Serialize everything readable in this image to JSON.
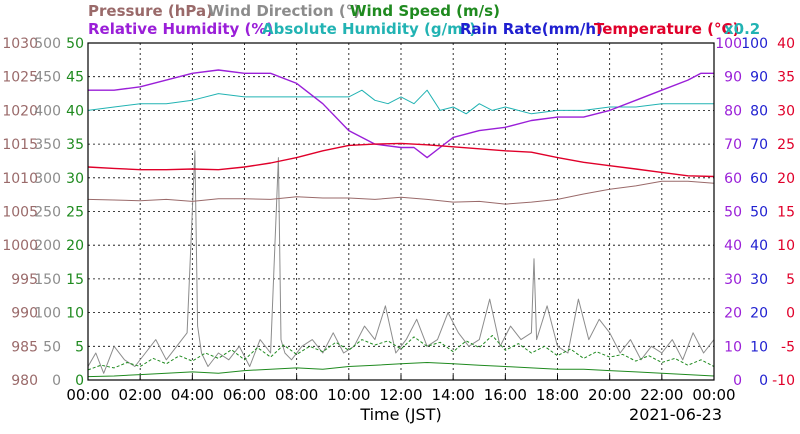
{
  "chart_data": {
    "type": "line",
    "date": "2021-06-23",
    "xlabel": "Time (JST)",
    "grid": true,
    "x_ticks": [
      "00:00",
      "02:00",
      "04:00",
      "06:00",
      "08:00",
      "10:00",
      "12:00",
      "14:00",
      "16:00",
      "18:00",
      "20:00",
      "22:00",
      "00:00"
    ],
    "legend": {
      "row1": [
        {
          "text": "Pressure (hPa)",
          "color": "#9a6a6a"
        },
        {
          "text": "Wind Direction (°)",
          "color": "#8c8c8c"
        },
        {
          "text": "Wind Speed (m/s)",
          "color": "#1f8a1f"
        }
      ],
      "row2": [
        {
          "text": "Relative Humidity (%)",
          "color": "#9a1fd8"
        },
        {
          "text": "Absolute Humidity (g/m³)",
          "color": "#22b3b3"
        },
        {
          "text": "Rain Rate(mm/h)",
          "color": "#1f1fd0"
        },
        {
          "text": "Temperature (°C)",
          "color": "#e0002a"
        },
        {
          "text": "x0.2",
          "color": "#22b3b3"
        }
      ]
    },
    "axes": {
      "pressure": {
        "label": "Pressure (hPa)",
        "ticks": [
          "980",
          "985",
          "990",
          "995",
          "1000",
          "1005",
          "1010",
          "1015",
          "1020",
          "1025",
          "1030"
        ],
        "range": [
          980,
          1030
        ],
        "color": "#9a6a6a"
      },
      "wind_direction": {
        "label": "Wind Direction (°)",
        "ticks": [
          "0",
          "50",
          "100",
          "150",
          "200",
          "250",
          "300",
          "350",
          "400",
          "450",
          "500"
        ],
        "range": [
          0,
          500
        ],
        "color": "#8c8c8c"
      },
      "wind_speed": {
        "label": "Wind Speed (m/s)",
        "ticks": [
          "0",
          "5",
          "10",
          "15",
          "20",
          "25",
          "30",
          "35",
          "40",
          "45",
          "50"
        ],
        "range": [
          0,
          50
        ],
        "color": "#1f8a1f"
      },
      "humidity": {
        "label": "Relative Humidity (%)",
        "ticks": [
          "0",
          "10",
          "20",
          "30",
          "40",
          "50",
          "60",
          "70",
          "80",
          "90",
          "100"
        ],
        "range": [
          0,
          100
        ],
        "color": "#9a1fd8"
      },
      "rain_rate": {
        "label": "Rain Rate(mm/h)",
        "ticks": [
          "0",
          "10",
          "20",
          "30",
          "40",
          "50",
          "60",
          "70",
          "80",
          "90",
          "100"
        ],
        "range": [
          0,
          100
        ],
        "color": "#1f1fd0"
      },
      "temperature": {
        "label": "Temperature (°C)",
        "ticks": [
          "-10",
          "-5",
          "0",
          "5",
          "10",
          "15",
          "20",
          "25",
          "30",
          "35",
          "40"
        ],
        "range": [
          -10,
          40
        ],
        "color": "#e0002a"
      }
    },
    "series": [
      {
        "name": "Pressure (hPa)",
        "axis": "pressure",
        "color": "#9a6a6a",
        "x": [
          0,
          1,
          2,
          3,
          4,
          5,
          6,
          7,
          8,
          9,
          10,
          11,
          12,
          13,
          14,
          15,
          16,
          17,
          18,
          19,
          20,
          21,
          22,
          23,
          24
        ],
        "values": [
          1006.8,
          1006.7,
          1006.6,
          1006.8,
          1006.5,
          1006.9,
          1006.9,
          1006.8,
          1007.2,
          1007.0,
          1007.0,
          1006.8,
          1007.1,
          1006.8,
          1006.4,
          1006.5,
          1006.1,
          1006.4,
          1006.8,
          1007.6,
          1008.3,
          1008.8,
          1009.5,
          1009.5,
          1009.2
        ]
      },
      {
        "name": "Absolute Humidity (g/m³)",
        "axis": "humidity",
        "color": "#22b3b3",
        "x": [
          0,
          1,
          2,
          3,
          4,
          5,
          6,
          7,
          8,
          9,
          10,
          10.5,
          11,
          11.5,
          12,
          12.5,
          13,
          13.5,
          14,
          14.5,
          15,
          15.5,
          16,
          17,
          18,
          19,
          20,
          21,
          22,
          23,
          24
        ],
        "values": [
          80,
          81,
          82,
          82,
          83,
          85,
          84,
          84,
          84,
          84,
          84,
          86,
          83,
          82,
          84,
          82,
          86,
          80,
          81,
          79,
          82,
          80,
          81,
          79,
          80,
          80,
          81,
          81,
          82,
          82,
          82
        ]
      },
      {
        "name": "Relative Humidity (%)",
        "axis": "humidity",
        "color": "#9a1fd8",
        "x": [
          0,
          1,
          2,
          3,
          4,
          5,
          6,
          7,
          8,
          9,
          10,
          11,
          12,
          12.5,
          13,
          13.5,
          14,
          15,
          16,
          17,
          18,
          19,
          20,
          21,
          22,
          23,
          23.5,
          24
        ],
        "values": [
          86,
          86,
          87,
          89,
          91,
          92,
          91,
          91,
          88,
          82,
          74,
          70,
          69,
          69,
          66,
          69,
          72,
          74,
          75,
          77,
          78,
          78,
          80,
          83,
          86,
          89,
          91,
          91
        ]
      },
      {
        "name": "Temperature (°C)",
        "axis": "temperature",
        "color": "#e0002a",
        "x": [
          0,
          1,
          2,
          3,
          4,
          5,
          6,
          7,
          8,
          9,
          10,
          11,
          12,
          13,
          14,
          15,
          16,
          17,
          18,
          19,
          20,
          21,
          22,
          23,
          24
        ],
        "values": [
          21.6,
          21.4,
          21.2,
          21.2,
          21.3,
          21.2,
          21.6,
          22.2,
          23.0,
          24.0,
          24.8,
          25.0,
          25.1,
          24.9,
          24.6,
          24.3,
          24.0,
          23.8,
          23.0,
          22.3,
          21.8,
          21.3,
          20.8,
          20.3,
          20.2
        ]
      },
      {
        "name": "Wind Direction (°)",
        "axis": "wind_direction",
        "color": "#8c8c8c",
        "x": [
          0,
          0.3,
          0.6,
          1,
          1.4,
          1.8,
          2.2,
          2.6,
          3,
          3.4,
          3.8,
          4.1,
          4.2,
          4.35,
          4.6,
          5,
          5.4,
          5.8,
          6.2,
          6.6,
          7,
          7.3,
          7.4,
          7.55,
          7.8,
          8.2,
          8.6,
          9,
          9.4,
          9.8,
          10.2,
          10.6,
          11,
          11.4,
          11.8,
          12.2,
          12.6,
          13,
          13.4,
          13.8,
          14.2,
          14.6,
          15,
          15.4,
          15.8,
          16.2,
          16.6,
          17,
          17.1,
          17.2,
          17.6,
          18,
          18.4,
          18.8,
          19.2,
          19.6,
          20,
          20.4,
          20.8,
          21.2,
          21.6,
          22,
          22.4,
          22.8,
          23.2,
          23.6,
          24
        ],
        "values": [
          20,
          40,
          10,
          50,
          30,
          20,
          40,
          60,
          30,
          50,
          70,
          340,
          80,
          40,
          20,
          40,
          30,
          50,
          20,
          60,
          40,
          330,
          60,
          40,
          30,
          50,
          60,
          40,
          70,
          40,
          50,
          80,
          60,
          110,
          40,
          60,
          90,
          50,
          60,
          100,
          70,
          50,
          60,
          120,
          50,
          80,
          60,
          70,
          180,
          60,
          110,
          50,
          40,
          120,
          60,
          90,
          70,
          40,
          60,
          30,
          50,
          40,
          60,
          30,
          70,
          40,
          60
        ]
      },
      {
        "name": "Wind Speed (m/s)",
        "axis": "wind_speed",
        "color": "#1f8a1f",
        "style": "dashed",
        "x": [
          0,
          0.5,
          1,
          1.5,
          2,
          2.5,
          3,
          3.5,
          4,
          4.5,
          5,
          5.5,
          6,
          6.5,
          7,
          7.5,
          8,
          8.5,
          9,
          9.5,
          10,
          10.5,
          11,
          11.5,
          12,
          12.5,
          13,
          13.5,
          14,
          14.5,
          15,
          15.5,
          16,
          16.5,
          17,
          17.5,
          18,
          18.5,
          19,
          19.5,
          20,
          20.5,
          21,
          21.5,
          22,
          22.5,
          23,
          23.5,
          24
        ],
        "values": [
          1.5,
          2.2,
          1.8,
          2.6,
          2.0,
          3.2,
          2.4,
          3.6,
          2.8,
          4.0,
          3.2,
          4.5,
          3.0,
          4.8,
          3.4,
          5.2,
          3.8,
          5.0,
          4.2,
          5.6,
          4.4,
          6.0,
          5.2,
          5.8,
          4.6,
          6.4,
          5.0,
          5.6,
          4.2,
          5.8,
          4.8,
          6.6,
          4.4,
          5.4,
          4.0,
          5.0,
          3.6,
          4.6,
          3.2,
          4.2,
          3.4,
          3.8,
          2.8,
          3.6,
          2.6,
          3.2,
          2.2,
          3.0,
          2.0
        ]
      },
      {
        "name": "Wind Speed (m/s) min",
        "axis": "wind_speed",
        "color": "#1f8a1f",
        "x": [
          0,
          1,
          2,
          3,
          4,
          5,
          6,
          7,
          8,
          9,
          10,
          11,
          12,
          13,
          14,
          15,
          16,
          17,
          18,
          19,
          20,
          21,
          22,
          23,
          24
        ],
        "values": [
          0.5,
          0.6,
          0.8,
          1.0,
          1.2,
          1.0,
          1.4,
          1.6,
          1.8,
          1.6,
          2.0,
          2.2,
          2.4,
          2.6,
          2.4,
          2.2,
          2.0,
          1.8,
          1.6,
          1.6,
          1.4,
          1.2,
          1.0,
          0.8,
          0.6
        ]
      },
      {
        "name": "Rain Rate(mm/h)",
        "axis": "rain_rate",
        "color": "#1f1fd0",
        "x": [
          0,
          24
        ],
        "values": [
          0,
          0
        ]
      }
    ]
  }
}
